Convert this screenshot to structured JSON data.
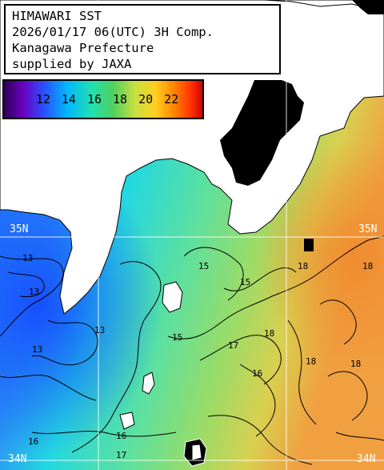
{
  "title": {
    "line1": "HIMAWARI SST",
    "line2": "2026/01/17 06(UTC) 3H Comp.",
    "line3": "Kanagawa Prefecture",
    "line4": "supplied by JAXA"
  },
  "legend": {
    "labels": [
      "12",
      "14",
      "16",
      "18",
      "20",
      "22"
    ],
    "colors": [
      "#2a0050",
      "#6a00c0",
      "#2c4cff",
      "#00b8ff",
      "#20e0b0",
      "#50d060",
      "#c8e040",
      "#ffd020",
      "#ff8000",
      "#ff3000",
      "#c80000"
    ]
  },
  "grid": {
    "lat_labels": [
      "35N",
      "35N",
      "34N",
      "34N"
    ]
  },
  "contour_labels": [
    "13",
    "13",
    "13",
    "13",
    "15",
    "15",
    "15",
    "16",
    "16",
    "16",
    "17",
    "17",
    "18",
    "18",
    "18",
    "18",
    "18"
  ],
  "colors": {
    "land": "#ffffff",
    "no_data": "#000000",
    "cold_water": "#2a78ff",
    "mid_water": "#22e0d0",
    "warm_water": "#7ed870",
    "hot_water": "#f0a040"
  }
}
